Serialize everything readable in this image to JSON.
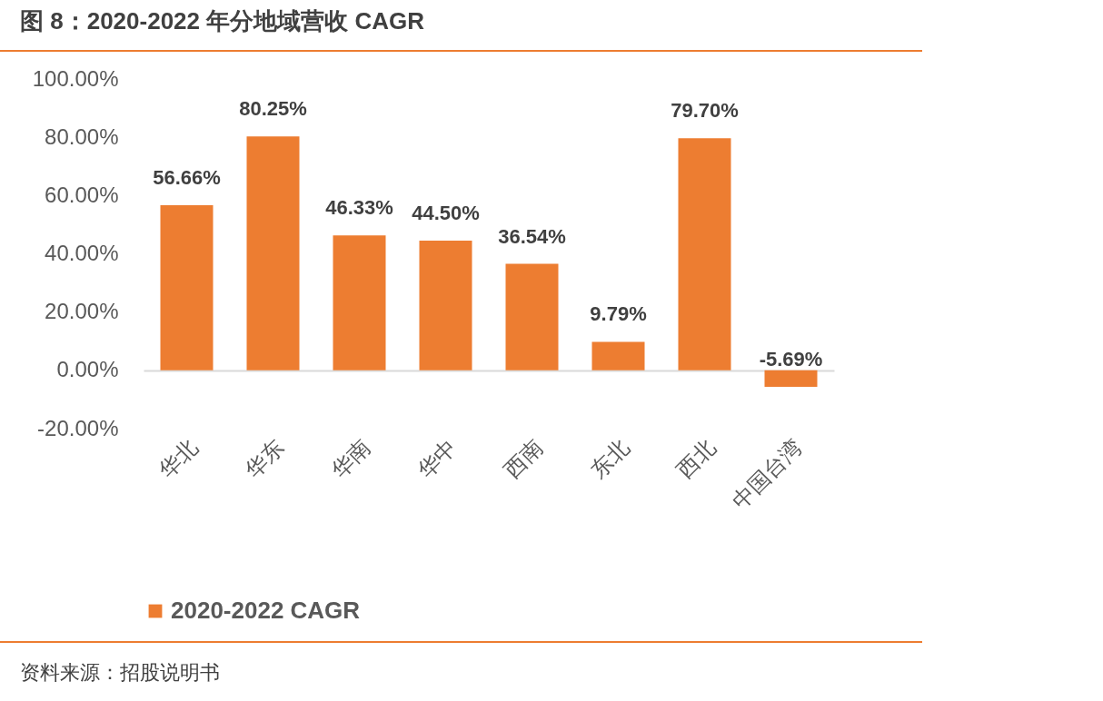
{
  "chart_data": {
    "type": "bar",
    "title": "图 8：2020-2022 年分地域营收 CAGR",
    "categories": [
      "华北",
      "华东",
      "华南",
      "华中",
      "西南",
      "东北",
      "西北",
      "中国台湾"
    ],
    "series": [
      {
        "name": "2020-2022 CAGR",
        "color": "#ed7d31",
        "values": [
          56.66,
          80.25,
          46.33,
          44.5,
          36.54,
          9.79,
          79.7,
          -5.69
        ],
        "value_labels": [
          "56.66%",
          "80.25%",
          "46.33%",
          "44.50%",
          "36.54%",
          "9.79%",
          "79.70%",
          "-5.69%"
        ]
      }
    ],
    "ylim": [
      -20,
      100
    ],
    "yticks": [
      {
        "value": -20,
        "label": "-20.00%"
      },
      {
        "value": 0,
        "label": "0.00%"
      },
      {
        "value": 20,
        "label": "20.00%"
      },
      {
        "value": 40,
        "label": "40.00%"
      },
      {
        "value": 60,
        "label": "60.00%"
      },
      {
        "value": 80,
        "label": "80.00%"
      },
      {
        "value": 100,
        "label": "100.00%"
      }
    ],
    "legend": "bottom",
    "annotations": [
      "资料来源：招股说明书"
    ]
  }
}
